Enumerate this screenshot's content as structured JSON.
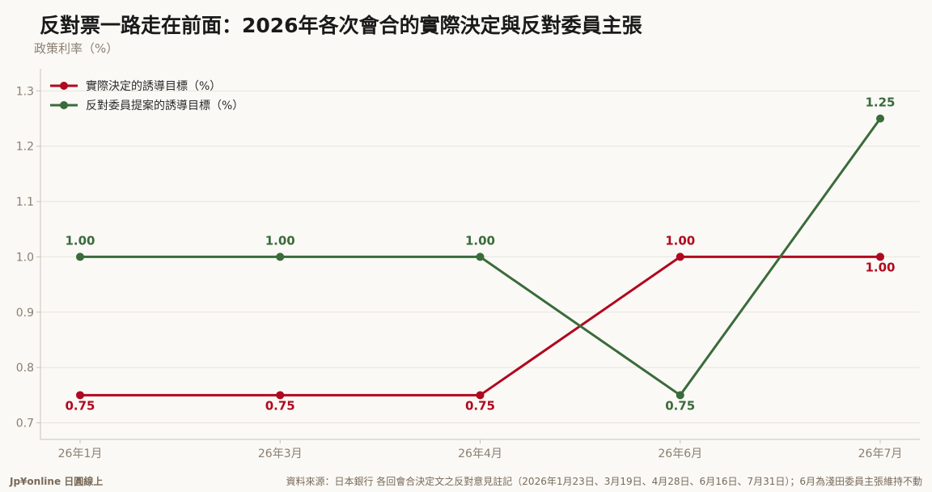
{
  "page": {
    "title": "反對票一路走在前面：2026年各次會合的實際決定與反對委員主張",
    "brand": "Jp¥online 日圓線上",
    "source": "資料來源：日本銀行 各回會合決定文之反對意見註記（2026年1月23日、3月19日、4月28日、6月16日、7月31日）；6月為淺田委員主張維持不動"
  },
  "colors": {
    "actual": "#b0091f",
    "dissent": "#3a6b3a",
    "axis_text": "#8a7f70",
    "grid": "#e8e4dc",
    "frame": "#c9c3b8"
  },
  "chart_data": {
    "type": "line",
    "title": "反對票一路走在前面：2026年各次會合的實際決定與反對委員主張",
    "ylabel": "政策利率（%）",
    "xlabel": "",
    "categories": [
      "26年1月",
      "26年3月",
      "26年4月",
      "26年6月",
      "26年7月"
    ],
    "ylim": [
      0.67,
      1.34
    ],
    "yticks": [
      "0.7",
      "0.8",
      "0.9",
      "1.0",
      "1.1",
      "1.2",
      "1.3"
    ],
    "grid": true,
    "legend_position": "top-left",
    "series": [
      {
        "name": "實際決定的誘導目標（%）",
        "color": "#b0091f",
        "values": [
          0.75,
          0.75,
          0.75,
          1.0,
          1.0
        ],
        "labels": [
          "0.75",
          "0.75",
          "0.75",
          "1.00",
          "1.00"
        ],
        "label_pos": [
          "below",
          "below",
          "below",
          "above",
          "below"
        ]
      },
      {
        "name": "反對委員提案的誘導目標（%）",
        "color": "#3a6b3a",
        "values": [
          1.0,
          1.0,
          1.0,
          0.75,
          1.25
        ],
        "labels": [
          "1.00",
          "1.00",
          "1.00",
          "0.75",
          "1.25"
        ],
        "label_pos": [
          "above",
          "above",
          "above",
          "below",
          "above"
        ]
      }
    ]
  }
}
